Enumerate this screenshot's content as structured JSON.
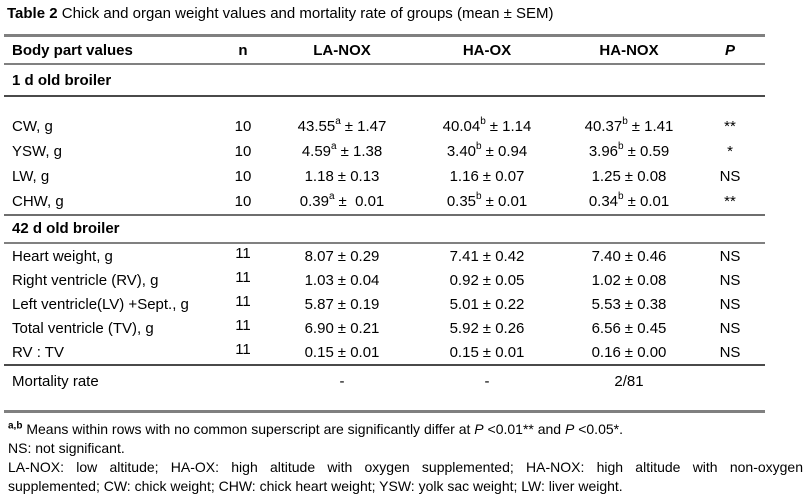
{
  "caption": {
    "label": "Table 2",
    "text": " Chick and organ weight values and mortality rate of groups (mean ± SEM)"
  },
  "colors": {
    "rule_gray": "#808080",
    "text": "#000000",
    "background": "#ffffff"
  },
  "table": {
    "columns": [
      "Body part values",
      "n",
      "LA-NOX",
      "HA-OX",
      "HA-NOX",
      "P"
    ],
    "sections": [
      {
        "header": "1 d old broiler",
        "rows": [
          {
            "label": "CW, g",
            "n": "10",
            "values": [
              {
                "m": "43.55",
                "s": "a",
                "e": "± 1.47"
              },
              {
                "m": "40.04",
                "s": "b",
                "e": "± 1.14"
              },
              {
                "m": "40.37",
                "s": "b",
                "e": "± 1.41"
              }
            ],
            "p": "**"
          },
          {
            "label": "YSW, g",
            "n": "10",
            "values": [
              {
                "m": "4.59",
                "s": "a",
                "e": "± 1.38"
              },
              {
                "m": "3.40",
                "s": "b",
                "e": "± 0.94"
              },
              {
                "m": "3.96",
                "s": "b",
                "e": "± 0.59"
              }
            ],
            "p": "*"
          },
          {
            "label": "LW, g",
            "n": "10",
            "values": [
              {
                "m": "1.18",
                "s": "",
                "e": "± 0.13"
              },
              {
                "m": "1.16",
                "s": "",
                "e": "± 0.07"
              },
              {
                "m": "1.25",
                "s": "",
                "e": "± 0.08"
              }
            ],
            "p": "NS"
          },
          {
            "label": "CHW, g",
            "n": "10",
            "values": [
              {
                "m": "0.39",
                "s": "a",
                "e": "±  0.01"
              },
              {
                "m": "0.35",
                "s": "b",
                "e": "± 0.01"
              },
              {
                "m": "0.34",
                "s": "b",
                "e": "± 0.01"
              }
            ],
            "p": "**"
          }
        ]
      },
      {
        "header": "42 d old broiler",
        "rows": [
          {
            "label": "Heart weight, g",
            "n": "11",
            "values": [
              {
                "m": "8.07",
                "s": "",
                "e": "± 0.29"
              },
              {
                "m": "7.41",
                "s": "",
                "e": "± 0.42"
              },
              {
                "m": "7.40",
                "s": "",
                "e": "± 0.46"
              }
            ],
            "p": "NS"
          },
          {
            "label": "Right ventricle (RV), g",
            "n": "11",
            "values": [
              {
                "m": "1.03",
                "s": "",
                "e": "± 0.04"
              },
              {
                "m": "0.92",
                "s": "",
                "e": "± 0.05"
              },
              {
                "m": "1.02",
                "s": "",
                "e": "± 0.08"
              }
            ],
            "p": "NS"
          },
          {
            "label": "Left ventricle(LV) +Sept., g",
            "n": "11",
            "values": [
              {
                "m": "5.87",
                "s": "",
                "e": "± 0.19"
              },
              {
                "m": "5.01",
                "s": "",
                "e": "± 0.22"
              },
              {
                "m": "5.53",
                "s": "",
                "e": "± 0.38"
              }
            ],
            "p": "NS"
          },
          {
            "label": "Total ventricle (TV), g",
            "n": "11",
            "values": [
              {
                "m": "6.90",
                "s": "",
                "e": "± 0.21"
              },
              {
                "m": "5.92",
                "s": "",
                "e": "± 0.26"
              },
              {
                "m": "6.56",
                "s": "",
                "e": "± 0.45"
              }
            ],
            "p": "NS"
          },
          {
            "label": "RV : TV",
            "n": "11",
            "values": [
              {
                "m": "0.15",
                "s": "",
                "e": "± 0.01"
              },
              {
                "m": "0.15",
                "s": "",
                "e": "± 0.01"
              },
              {
                "m": "0.16",
                "s": "",
                "e": "± 0.00"
              }
            ],
            "p": "NS"
          }
        ]
      }
    ],
    "mortality": {
      "label": "Mortality rate",
      "n": "",
      "values": [
        "-",
        "-",
        "2/81"
      ],
      "p": ""
    }
  },
  "footnotes": {
    "sig_sup": "a,b",
    "sig_a": " Means within rows with no common superscript are significantly differ at ",
    "sig_p1": "P",
    "sig_b": " <0.01** and ",
    "sig_p2": "P",
    "sig_c": " <0.05*.",
    "ns": "NS: not significant.",
    "abbrev1": "LA-NOX: low altitude; HA-OX: high altitude with oxygen supplemented; HA-NOX: high altitude with non-oxygen",
    "abbrev2": "supplemented; CW: chick weight; CHW: chick heart weight; YSW: yolk sac weight; LW: liver weight."
  }
}
